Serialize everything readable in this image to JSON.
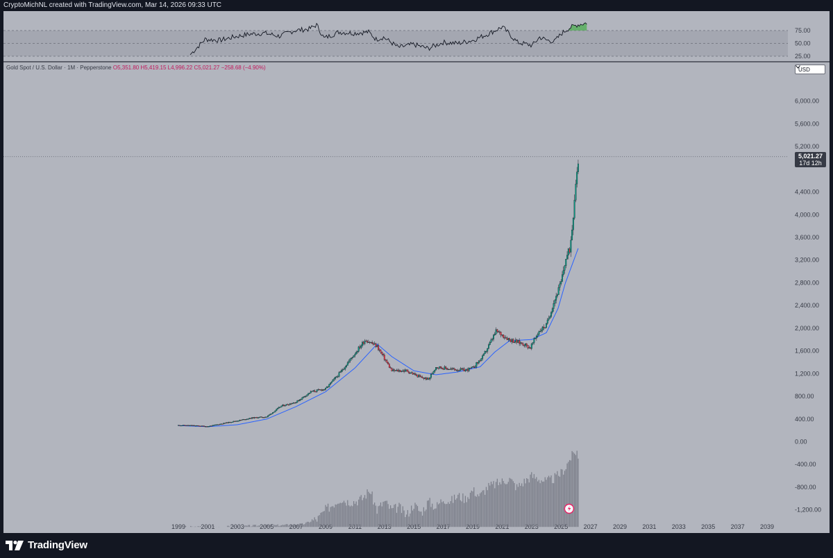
{
  "header": {
    "caption": "CryptoMichNL created with TradingView.com, Mar 14, 2026 09:33 UTC"
  },
  "legend": {
    "symbol": "Gold Spot / U.S. Dollar · 1M · Pepperstone",
    "open": "O5,351.80",
    "high": "H5,419.15",
    "low": "L4,996.22",
    "close": "C5,021.27",
    "change": "−258.68 (−4.90%)"
  },
  "currency": "USD",
  "price_label": {
    "value": "5,021.27",
    "countdown": "17d 12h"
  },
  "footer": {
    "brand": "TradingView"
  },
  "colors": {
    "up": "#089981",
    "down": "#f23645",
    "ma": "#2962ff",
    "rsi_line": "#131722",
    "rsi_overbought_fill": "#4caf50",
    "volume": "#787b86"
  },
  "chart_data": [
    {
      "type": "line",
      "title": "",
      "xlabel": "",
      "ylabel": "",
      "yticks": [
        "75.00",
        "50.00",
        "25.00"
      ],
      "ylim": [
        25,
        90
      ],
      "grid": false,
      "series": [
        {
          "x": [
            1999.5,
            2000.5,
            2001.5,
            2002.5,
            2003.5,
            2004.5,
            2005.5,
            2006.5,
            2007.5,
            2008.0,
            2008.5,
            2009.5,
            2010.5,
            2011.5,
            2012.0,
            2012.5,
            2013.5,
            2014.5,
            2015.5,
            2016.5,
            2017.5,
            2018.5,
            2019.5,
            2020.5,
            2021.5,
            2022.5,
            2023.0,
            2023.5,
            2024.0,
            2024.5,
            2025.0,
            2025.5,
            2026.2
          ],
          "values": [
            28,
            58,
            56,
            63,
            68,
            70,
            64,
            75,
            78,
            86,
            60,
            72,
            70,
            72,
            58,
            62,
            42,
            48,
            40,
            52,
            50,
            56,
            68,
            82,
            52,
            46,
            62,
            56,
            54,
            70,
            80,
            86,
            90
          ]
        }
      ]
    },
    {
      "type": "line",
      "title": "",
      "xlabel": "",
      "ylabel": "",
      "xticks": [
        "1999",
        "2001",
        "2003",
        "2005",
        "2007",
        "2009",
        "2011",
        "2013",
        "2015",
        "2017",
        "2019",
        "2021",
        "2023",
        "2025",
        "2027",
        "2029",
        "2031",
        "2033",
        "2035",
        "2037",
        "2039"
      ],
      "yticks": [
        "6,000.00",
        "5,600.00",
        "5,200.00",
        "4,400.00",
        "4,000.00",
        "3,600.00",
        "3,200.00",
        "2,800.00",
        "2,400.00",
        "2,000.00",
        "1,600.00",
        "1,200.00",
        "800.00",
        "400.00",
        "0.00",
        "-400.00",
        "-800.00",
        "-1,200.00"
      ],
      "ylim": [
        -1500,
        6250
      ],
      "xlim": [
        1998.3,
        2039.8
      ],
      "grid": false,
      "series": [
        {
          "x": [
            1999.0,
            2000.0,
            2001.0,
            2002.0,
            2003.0,
            2004.0,
            2005.0,
            2006.0,
            2007.0,
            2008.0,
            2009.0,
            2010.0,
            2011.0,
            2011.7,
            2012.5,
            2013.5,
            2014.5,
            2015.5,
            2016.0,
            2016.5,
            2017.5,
            2018.5,
            2019.0,
            2019.7,
            2020.6,
            2021.5,
            2022.5,
            2022.9,
            2023.5,
            2024.0,
            2024.5,
            2025.0,
            2025.3,
            2025.6,
            2025.8,
            2026.0,
            2026.2
          ],
          "values": [
            290,
            285,
            270,
            320,
            370,
            420,
            440,
            630,
            700,
            880,
            930,
            1220,
            1560,
            1800,
            1680,
            1250,
            1250,
            1130,
            1100,
            1320,
            1280,
            1260,
            1300,
            1500,
            1950,
            1800,
            1720,
            1650,
            1950,
            2050,
            2450,
            2800,
            3200,
            3400,
            3900,
            4600,
            5021
          ]
        },
        {
          "x": [
            1999.0,
            2001.0,
            2003.0,
            2005.0,
            2007.0,
            2009.0,
            2011.0,
            2012.5,
            2013.5,
            2015.0,
            2016.5,
            2018.0,
            2019.5,
            2020.5,
            2021.5,
            2023.0,
            2024.0,
            2024.8,
            2025.3,
            2025.8,
            2026.2
          ],
          "values": [
            285,
            265,
            300,
            400,
            620,
            880,
            1300,
            1720,
            1500,
            1250,
            1180,
            1230,
            1320,
            1580,
            1780,
            1800,
            1920,
            2350,
            2800,
            3150,
            3430
          ]
        },
        {
          "x": [
            2000.0,
            2002.0,
            2004.0,
            2006.0,
            2007.5,
            2008.5,
            2009.0,
            2009.5,
            2010.0,
            2010.5,
            2011.0,
            2011.5,
            2012.0,
            2012.5,
            2013.0,
            2013.5,
            2014.0,
            2014.5,
            2015.0,
            2015.5,
            2016.0,
            2016.5,
            2017.0,
            2017.5,
            2018.0,
            2018.5,
            2019.0,
            2019.5,
            2020.0,
            2020.5,
            2021.0,
            2021.5,
            2022.0,
            2022.5,
            2023.0,
            2023.5,
            2024.0,
            2024.5,
            2025.0,
            2025.3,
            2025.6,
            2025.9,
            2026.1,
            2026.2
          ],
          "values": [
            -1500,
            -1500,
            -1480,
            -1470,
            -1450,
            -1350,
            -1200,
            -1100,
            -1000,
            -1050,
            -1050,
            -1000,
            -850,
            -1200,
            -1050,
            -1200,
            -1150,
            -1300,
            -1100,
            -1250,
            -1050,
            -1150,
            -1000,
            -1050,
            -950,
            -1000,
            -850,
            -950,
            -800,
            -750,
            -700,
            -650,
            -800,
            -700,
            -600,
            -650,
            -700,
            -650,
            -550,
            -450,
            -300,
            -200,
            -150,
            -400
          ]
        }
      ]
    }
  ]
}
